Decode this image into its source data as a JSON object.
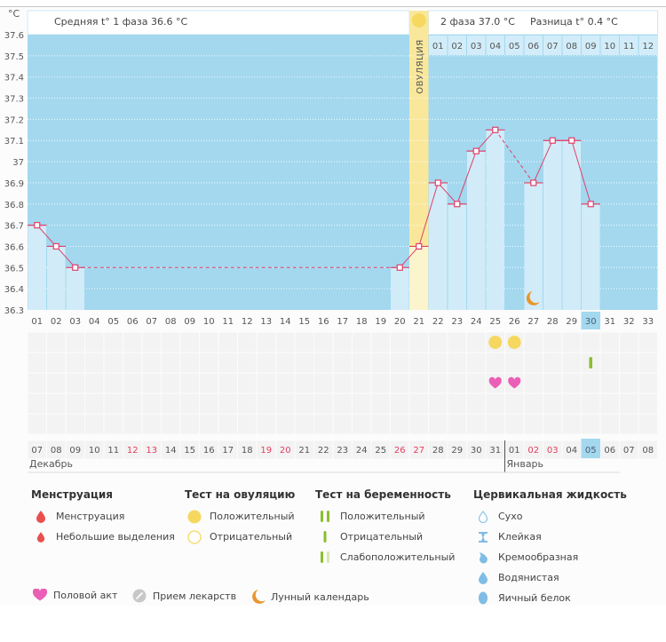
{
  "chart_data": {
    "type": "bar",
    "title": "",
    "ylabel": "°C",
    "ylim": [
      36.3,
      37.6
    ],
    "yticks": [
      "37.6",
      "37.5",
      "37.4",
      "37.3",
      "37.2",
      "37.1",
      "37",
      "36.9",
      "36.8",
      "36.7",
      "36.6",
      "36.5",
      "36.4",
      "36.3"
    ],
    "cycle_days": [
      "01",
      "02",
      "03",
      "04",
      "05",
      "06",
      "07",
      "08",
      "09",
      "10",
      "11",
      "12",
      "13",
      "14",
      "15",
      "16",
      "17",
      "18",
      "19",
      "20",
      "21",
      "22",
      "23",
      "24",
      "25",
      "26",
      "27",
      "28",
      "29",
      "30",
      "31",
      "32",
      "33"
    ],
    "phase2_days": [
      "01",
      "02",
      "03",
      "04",
      "05",
      "06",
      "07",
      "08",
      "09",
      "10",
      "11",
      "12"
    ],
    "temperatures": [
      {
        "day": 1,
        "value": 36.7
      },
      {
        "day": 2,
        "value": 36.6
      },
      {
        "day": 3,
        "value": 36.5
      },
      {
        "day": 20,
        "value": 36.5
      },
      {
        "day": 21,
        "value": 36.6
      },
      {
        "day": 22,
        "value": 36.9
      },
      {
        "day": 23,
        "value": 36.8
      },
      {
        "day": 24,
        "value": 37.05
      },
      {
        "day": 25,
        "value": 37.15
      },
      {
        "day": 27,
        "value": 36.9
      },
      {
        "day": 28,
        "value": 37.1
      },
      {
        "day": 29,
        "value": 37.1
      },
      {
        "day": 30,
        "value": 36.8
      }
    ],
    "dashed_segments": [
      [
        3,
        20
      ],
      [
        25,
        27
      ]
    ],
    "ovulation_day": 21,
    "ovulation_label": "ОВУЛЯЦИЯ",
    "current_day": 30,
    "moon_day": 27,
    "ovulation_test_positive_days": [
      25,
      26
    ],
    "pregnancy_test_negative_days": [
      30
    ],
    "intercourse_days": [
      25,
      26
    ],
    "calendar_dates": [
      "07",
      "08",
      "09",
      "10",
      "11",
      "12",
      "13",
      "14",
      "15",
      "16",
      "17",
      "18",
      "19",
      "20",
      "21",
      "22",
      "23",
      "24",
      "25",
      "26",
      "27",
      "28",
      "29",
      "30",
      "31",
      "01",
      "02",
      "03",
      "04",
      "05",
      "06",
      "07",
      "08"
    ],
    "weekend_indices": [
      5,
      6,
      12,
      13,
      19,
      20,
      26,
      27
    ],
    "today_date_index": 29,
    "month_labels": [
      {
        "label": "Декабрь",
        "start_index": 0
      },
      {
        "label": "Январь",
        "start_index": 25
      }
    ]
  },
  "header": {
    "unit": "°C",
    "phase1": "Средняя t° 1 фаза 36.6 °C",
    "phase2": "2 фаза 37.0 °C",
    "difference": "Разница t° 0.4 °C"
  },
  "legend": {
    "menstruation": {
      "title": "Менструация",
      "items": [
        "Менструация",
        "Небольшие выделения"
      ]
    },
    "ovulation_test": {
      "title": "Тест на овуляцию",
      "items": [
        "Положительный",
        "Отрицательный"
      ]
    },
    "pregnancy_test": {
      "title": "Тест на беременность",
      "items": [
        "Положительный",
        "Отрицательный",
        "Слабоположительный"
      ]
    },
    "cervical_fluid": {
      "title": "Цервикальная жидкость",
      "items": [
        "Сухо",
        "Клейкая",
        "Кремообразная",
        "Водянистая",
        "Яичный белок"
      ]
    },
    "other": [
      "Половой акт",
      "Прием лекарств",
      "Лунный календарь"
    ]
  },
  "colors": {
    "plot_bg": "#a3d8ef",
    "bar": "#d1ecf8",
    "line": "#e0406a",
    "ovulation": "#f9e89b",
    "ovulation_light": "#fbf4cd",
    "weekend": "#e2405f",
    "sun": "#f6d860",
    "heart": "#ea5fb5",
    "moon": "#e8962e",
    "green": "#8dbd2e"
  }
}
